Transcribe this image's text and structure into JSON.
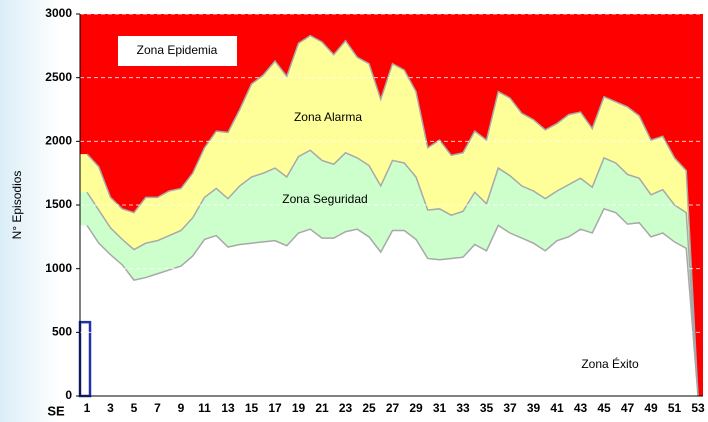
{
  "chart_data": {
    "type": "area",
    "y_label": "N° Episodios",
    "x_label": "SE",
    "annotations": [
      "Zona Epidemia"
    ],
    "background_color": "#ff0000",
    "x": [
      1,
      2,
      3,
      4,
      5,
      6,
      7,
      8,
      9,
      10,
      11,
      12,
      13,
      14,
      15,
      16,
      17,
      18,
      19,
      20,
      21,
      22,
      23,
      24,
      25,
      26,
      27,
      28,
      29,
      30,
      31,
      32,
      33,
      34,
      35,
      36,
      37,
      38,
      39,
      40,
      41,
      42,
      43,
      44,
      45,
      46,
      47,
      48,
      49,
      50,
      51,
      52,
      53
    ],
    "xlim": [
      1,
      53
    ],
    "xticks": [
      1,
      3,
      5,
      7,
      9,
      11,
      13,
      15,
      17,
      19,
      21,
      23,
      25,
      27,
      29,
      31,
      33,
      35,
      37,
      39,
      41,
      43,
      45,
      47,
      49,
      51,
      53
    ],
    "ylim": [
      0,
      3000
    ],
    "yticks": [
      0,
      500,
      1000,
      1500,
      2000,
      2500,
      3000
    ],
    "grid": true,
    "series": [
      {
        "name": "Zona Alarma",
        "color": "#ffff99",
        "values": [
          1900,
          1800,
          1560,
          1470,
          1440,
          1560,
          1560,
          1610,
          1630,
          1750,
          1950,
          2080,
          2070,
          2250,
          2450,
          2520,
          2630,
          2510,
          2770,
          2830,
          2780,
          2680,
          2790,
          2660,
          2610,
          2330,
          2610,
          2560,
          2390,
          1950,
          2010,
          1890,
          1910,
          2080,
          2010,
          2390,
          2340,
          2220,
          2170,
          2090,
          2140,
          2210,
          2230,
          2100,
          2350,
          2310,
          2270,
          2200,
          2010,
          2040,
          1870,
          1770,
          0
        ]
      },
      {
        "name": "Zona Seguridad",
        "color": "#ccffcc",
        "values": [
          1600,
          1460,
          1320,
          1230,
          1150,
          1200,
          1220,
          1260,
          1300,
          1400,
          1560,
          1630,
          1550,
          1650,
          1720,
          1750,
          1790,
          1720,
          1880,
          1930,
          1850,
          1820,
          1910,
          1870,
          1810,
          1650,
          1850,
          1830,
          1720,
          1460,
          1470,
          1420,
          1450,
          1600,
          1510,
          1790,
          1730,
          1650,
          1610,
          1550,
          1610,
          1660,
          1710,
          1640,
          1870,
          1830,
          1740,
          1710,
          1580,
          1620,
          1500,
          1440,
          0
        ]
      },
      {
        "name": "Zona Éxito",
        "color": "#ffffff",
        "values": [
          1340,
          1200,
          1110,
          1030,
          910,
          930,
          960,
          990,
          1020,
          1100,
          1230,
          1260,
          1170,
          1190,
          1200,
          1210,
          1220,
          1180,
          1280,
          1310,
          1240,
          1240,
          1290,
          1310,
          1250,
          1130,
          1300,
          1300,
          1230,
          1080,
          1070,
          1080,
          1090,
          1190,
          1140,
          1340,
          1280,
          1240,
          1200,
          1140,
          1220,
          1250,
          1310,
          1280,
          1470,
          1440,
          1350,
          1360,
          1250,
          1280,
          1210,
          1160,
          0
        ]
      },
      {
        "type": "bar",
        "color": "#2233aa",
        "values": [
          580,
          null,
          null,
          null,
          null,
          null,
          null,
          null,
          null,
          null,
          null,
          null,
          null,
          null,
          null,
          null,
          null,
          null,
          null,
          null,
          null,
          null,
          null,
          null,
          null,
          null,
          null,
          null,
          null,
          null,
          null,
          null,
          null,
          null,
          null,
          null,
          null,
          null,
          null,
          null,
          null,
          null,
          null,
          null,
          null,
          null,
          null,
          null,
          null,
          null,
          null,
          null,
          null
        ]
      }
    ]
  }
}
